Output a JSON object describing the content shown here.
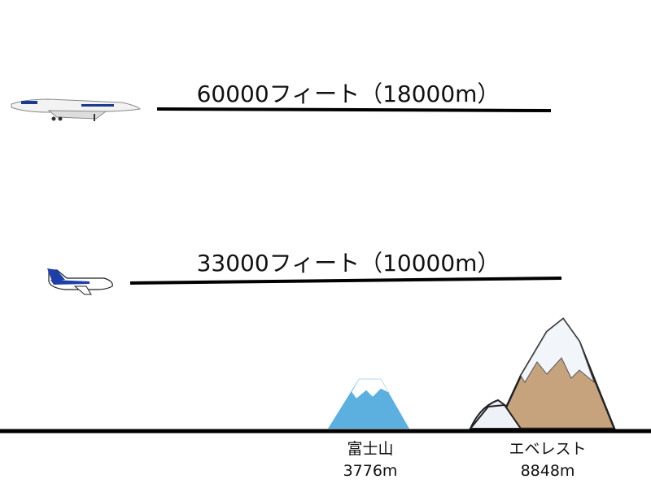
{
  "altitudes": [
    {
      "label": "60000フィート（18000m）"
    },
    {
      "label": "33000フィート（10000m）"
    }
  ],
  "mountains": [
    {
      "name": "富士山",
      "height": "3776m"
    },
    {
      "name": "エベレスト",
      "height": "8848m"
    }
  ]
}
